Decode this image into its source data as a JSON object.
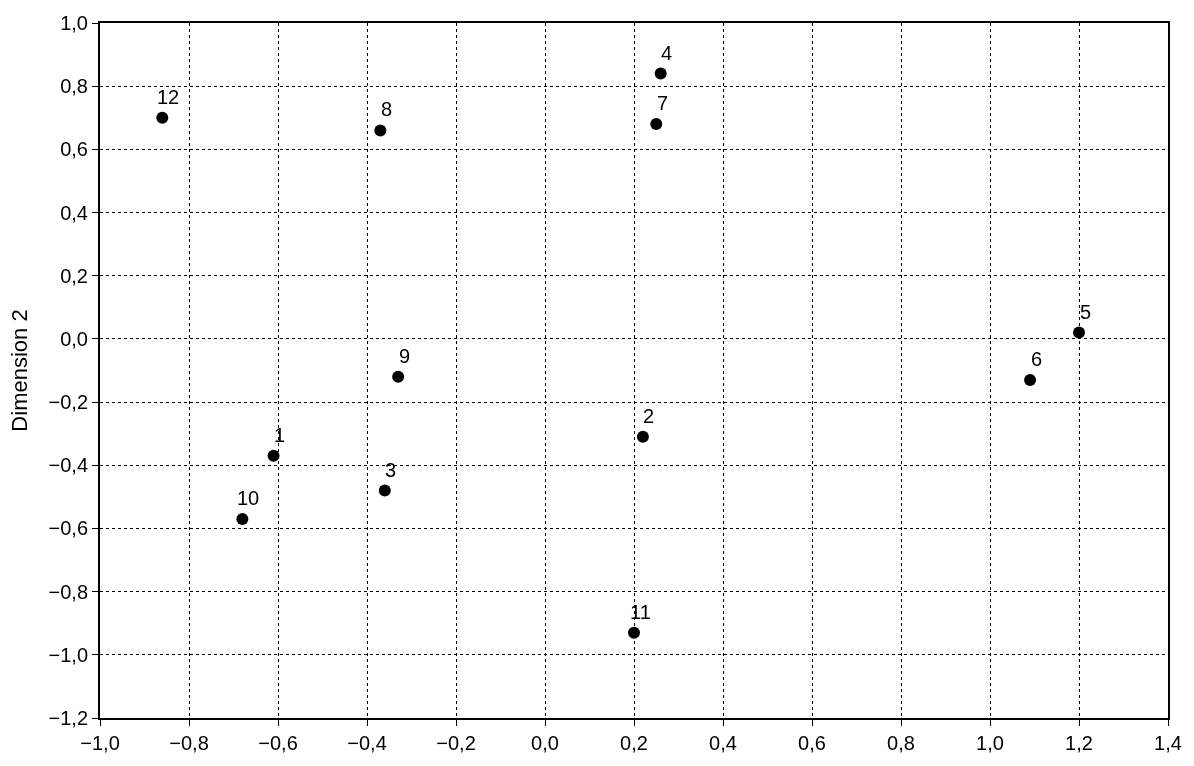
{
  "chart_data": {
    "type": "scatter",
    "ylabel": "Dimension 2",
    "x": [
      -0.61,
      0.22,
      -0.36,
      0.26,
      1.2,
      1.09,
      0.25,
      -0.37,
      -0.33,
      -0.68,
      0.2,
      -0.86
    ],
    "values": [
      -0.37,
      -0.31,
      -0.48,
      0.84,
      0.02,
      -0.13,
      0.68,
      0.66,
      -0.12,
      -0.57,
      -0.93,
      0.7
    ],
    "annotations": [
      {
        "text": "1",
        "x": -0.61,
        "y": -0.37
      },
      {
        "text": "2",
        "x": 0.22,
        "y": -0.31
      },
      {
        "text": "3",
        "x": -0.36,
        "y": -0.48
      },
      {
        "text": "4",
        "x": 0.26,
        "y": 0.84
      },
      {
        "text": "5",
        "x": 1.2,
        "y": 0.02
      },
      {
        "text": "6",
        "x": 1.09,
        "y": -0.13
      },
      {
        "text": "7",
        "x": 0.25,
        "y": 0.68
      },
      {
        "text": "8",
        "x": -0.37,
        "y": 0.66
      },
      {
        "text": "9",
        "x": -0.33,
        "y": -0.12
      },
      {
        "text": "10",
        "x": -0.68,
        "y": -0.57
      },
      {
        "text": "11",
        "x": 0.2,
        "y": -0.93
      },
      {
        "text": "12",
        "x": -0.86,
        "y": 0.7
      }
    ],
    "color": "#000000",
    "marker": "circle",
    "grid": true,
    "xlim": [
      -1.0,
      1.4
    ],
    "xticks": [
      {
        "value": -1.0,
        "label": "−1,0"
      },
      {
        "value": -0.8,
        "label": "−0,8"
      },
      {
        "value": -0.6,
        "label": "−0,6"
      },
      {
        "value": -0.4,
        "label": "−0,4"
      },
      {
        "value": -0.2,
        "label": "−0,2"
      },
      {
        "value": 0.0,
        "label": "0,0"
      },
      {
        "value": 0.2,
        "label": "0,2"
      },
      {
        "value": 0.4,
        "label": "0,4"
      },
      {
        "value": 0.6,
        "label": "0,6"
      },
      {
        "value": 0.8,
        "label": "0,8"
      },
      {
        "value": 1.0,
        "label": "1,0"
      },
      {
        "value": 1.2,
        "label": "1,2"
      },
      {
        "value": 1.4,
        "label": "1,4"
      }
    ],
    "ylim": [
      -1.2,
      1.0
    ],
    "yticks": [
      {
        "value": -1.2,
        "label": "−1,2"
      },
      {
        "value": -1.0,
        "label": "−1,0"
      },
      {
        "value": -0.8,
        "label": "−0,8"
      },
      {
        "value": -0.6,
        "label": "−0,6"
      },
      {
        "value": -0.4,
        "label": "−0,4"
      },
      {
        "value": -0.2,
        "label": "−0,2"
      },
      {
        "value": 0.0,
        "label": "0,0"
      },
      {
        "value": 0.2,
        "label": "0,2"
      },
      {
        "value": 0.4,
        "label": "0,4"
      },
      {
        "value": 0.6,
        "label": "0,6"
      },
      {
        "value": 0.8,
        "label": "0,8"
      },
      {
        "value": 1.0,
        "label": "1,0"
      }
    ]
  }
}
